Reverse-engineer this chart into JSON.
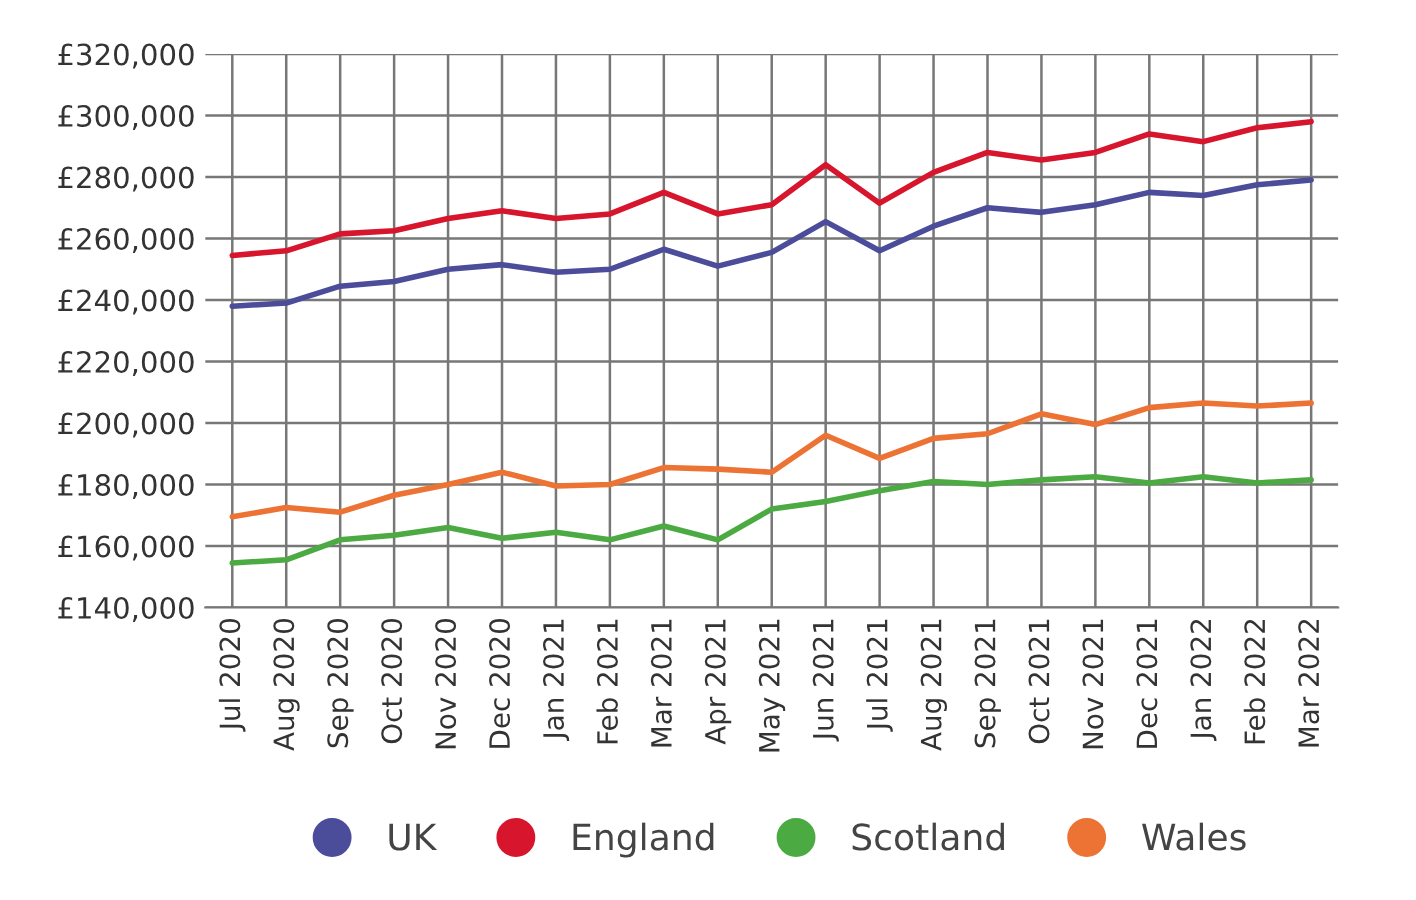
{
  "chart_data": {
    "type": "line",
    "categories": [
      "Jul 2020",
      "Aug 2020",
      "Sep 2020",
      "Oct 2020",
      "Nov 2020",
      "Dec 2020",
      "Jan 2021",
      "Feb 2021",
      "Mar 2021",
      "Apr 2021",
      "May 2021",
      "Jun 2021",
      "Jul 2021",
      "Aug 2021",
      "Sep 2021",
      "Oct 2021",
      "Nov 2021",
      "Dec 2021",
      "Jan 2022",
      "Feb 2022",
      "Mar 2022"
    ],
    "series": [
      {
        "name": "UK",
        "color": "#4b4c9a",
        "values": [
          238000,
          239000,
          244500,
          246000,
          250000,
          251500,
          249000,
          250000,
          256500,
          251000,
          255500,
          265500,
          256000,
          264000,
          270000,
          268500,
          271000,
          275000,
          274000,
          277500,
          279000
        ]
      },
      {
        "name": "England",
        "color": "#d7152c",
        "values": [
          254500,
          256000,
          261500,
          262500,
          266500,
          269000,
          266500,
          268000,
          275000,
          268000,
          271000,
          284000,
          271500,
          281500,
          288000,
          285500,
          288000,
          294000,
          291500,
          296000,
          298000
        ]
      },
      {
        "name": "Scotland",
        "color": "#4caa43",
        "values": [
          154500,
          155500,
          162000,
          163500,
          166000,
          162500,
          164500,
          162000,
          166500,
          162000,
          172000,
          174500,
          178000,
          181000,
          180000,
          181500,
          182500,
          180500,
          182500,
          180500,
          181500
        ]
      },
      {
        "name": "Wales",
        "color": "#ec7333",
        "values": [
          169500,
          172500,
          171000,
          176500,
          180000,
          184000,
          179500,
          180000,
          185500,
          185000,
          184000,
          196000,
          188500,
          195000,
          196500,
          203000,
          199500,
          205000,
          206500,
          205500,
          206500
        ]
      }
    ],
    "ylim": [
      140000,
      320000
    ],
    "yticks": [
      {
        "value": 140000,
        "label": "£140,000"
      },
      {
        "value": 160000,
        "label": "£160,000"
      },
      {
        "value": 180000,
        "label": "£180,000"
      },
      {
        "value": 200000,
        "label": "£200,000"
      },
      {
        "value": 220000,
        "label": "£220,000"
      },
      {
        "value": 240000,
        "label": "£240,000"
      },
      {
        "value": 260000,
        "label": "£260,000"
      },
      {
        "value": 280000,
        "label": "£280,000"
      },
      {
        "value": 300000,
        "label": "£300,000"
      },
      {
        "value": 320000,
        "label": "£320,000"
      }
    ],
    "grid": true,
    "legend": "bottom",
    "marker": "none",
    "line_style": "solid"
  }
}
